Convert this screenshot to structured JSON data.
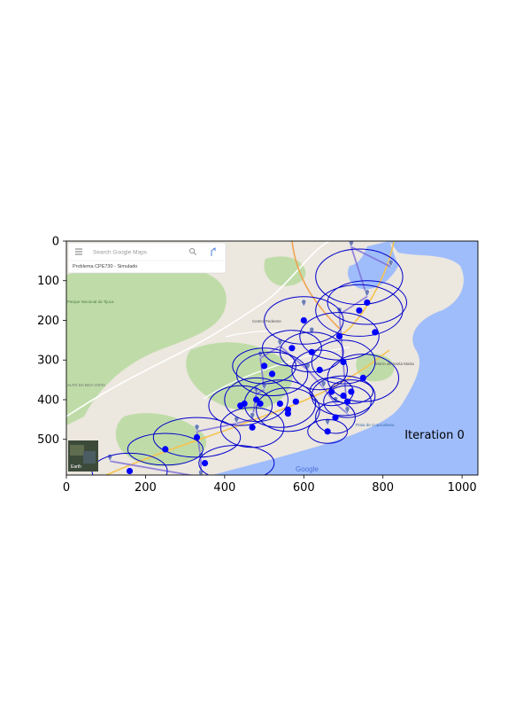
{
  "chart_data": {
    "type": "scatter",
    "title": "",
    "xlabel": "",
    "ylabel": "",
    "xlim": [
      0,
      1040
    ],
    "ylim": [
      590,
      0
    ],
    "xticks": [
      0,
      200,
      400,
      600,
      800,
      1000
    ],
    "yticks": [
      0,
      100,
      200,
      300,
      400,
      500
    ],
    "annotation": "Iteration 0",
    "background": "map image",
    "map_text": {
      "search_placeholder": "Search Google Maps",
      "project_title": "Problema CPE730 - Simulado",
      "park_label": "Parque Nacional da Tijuca",
      "area_label": "ALTO DA BOA VISTA",
      "centro_label": "Centro Pedestre",
      "beach_label": "Praia de Copacabana",
      "morro_label": "Morro de Santa Marta",
      "earth_label": "Earth",
      "google_logo": "Google"
    },
    "markers": {
      "x": [
        110,
        330,
        340,
        340,
        430,
        470,
        480,
        490,
        500,
        540,
        600,
        610,
        620,
        650,
        660,
        680,
        690,
        710,
        720,
        760,
        820
      ],
      "y": [
        555,
        480,
        550,
        595,
        460,
        450,
        385,
        295,
        375,
        265,
        165,
        325,
        235,
        370,
        465,
        410,
        185,
        435,
        15,
        140,
        65
      ]
    },
    "series": [
      {
        "name": "",
        "x": [
          160,
          250,
          330,
          350,
          440,
          450,
          470,
          480,
          490,
          500,
          520,
          540,
          560,
          560,
          570,
          580,
          600,
          620,
          640,
          660,
          670,
          680,
          690,
          700,
          700,
          710,
          720,
          740,
          750,
          760,
          780
        ],
        "y": [
          580,
          525,
          495,
          560,
          415,
          410,
          470,
          400,
          410,
          315,
          335,
          410,
          425,
          435,
          270,
          405,
          200,
          280,
          325,
          480,
          380,
          445,
          240,
          305,
          390,
          405,
          380,
          175,
          345,
          155,
          230
        ]
      }
    ],
    "ellipses": [
      {
        "cx": 160,
        "cy": 580,
        "rx": 95,
        "ry": 45
      },
      {
        "cx": 250,
        "cy": 525,
        "rx": 95,
        "ry": 40
      },
      {
        "cx": 330,
        "cy": 495,
        "rx": 110,
        "ry": 50
      },
      {
        "cx": 430,
        "cy": 560,
        "rx": 95,
        "ry": 45
      },
      {
        "cx": 440,
        "cy": 415,
        "rx": 80,
        "ry": 50
      },
      {
        "cx": 470,
        "cy": 470,
        "rx": 80,
        "ry": 50
      },
      {
        "cx": 480,
        "cy": 400,
        "rx": 80,
        "ry": 55
      },
      {
        "cx": 500,
        "cy": 315,
        "rx": 80,
        "ry": 45
      },
      {
        "cx": 520,
        "cy": 335,
        "rx": 90,
        "ry": 55
      },
      {
        "cx": 540,
        "cy": 410,
        "rx": 90,
        "ry": 60
      },
      {
        "cx": 560,
        "cy": 425,
        "rx": 80,
        "ry": 55
      },
      {
        "cx": 570,
        "cy": 270,
        "rx": 75,
        "ry": 45
      },
      {
        "cx": 600,
        "cy": 200,
        "rx": 100,
        "ry": 60
      },
      {
        "cx": 620,
        "cy": 280,
        "rx": 80,
        "ry": 50
      },
      {
        "cx": 640,
        "cy": 325,
        "rx": 70,
        "ry": 50
      },
      {
        "cx": 660,
        "cy": 480,
        "rx": 50,
        "ry": 30
      },
      {
        "cx": 670,
        "cy": 380,
        "rx": 55,
        "ry": 35
      },
      {
        "cx": 680,
        "cy": 445,
        "rx": 50,
        "ry": 40
      },
      {
        "cx": 690,
        "cy": 240,
        "rx": 100,
        "ry": 60
      },
      {
        "cx": 700,
        "cy": 305,
        "rx": 80,
        "ry": 55
      },
      {
        "cx": 700,
        "cy": 390,
        "rx": 80,
        "ry": 50
      },
      {
        "cx": 710,
        "cy": 405,
        "rx": 60,
        "ry": 40
      },
      {
        "cx": 720,
        "cy": 380,
        "rx": 55,
        "ry": 30
      },
      {
        "cx": 740,
        "cy": 175,
        "rx": 110,
        "ry": 65
      },
      {
        "cx": 750,
        "cy": 345,
        "rx": 90,
        "ry": 60
      },
      {
        "cx": 760,
        "cy": 155,
        "rx": 100,
        "ry": 55
      },
      {
        "cx": 740,
        "cy": 90,
        "rx": 110,
        "ry": 70
      }
    ],
    "colors": {
      "points": "#0000ff",
      "ellipses": "#0000cc",
      "route": "#7b6bd8",
      "land": "#ece7df",
      "park": "#bfdca8",
      "water": "#9fbdfb",
      "road_major": "#f5c34f",
      "marker": "#6d7fb8"
    }
  }
}
